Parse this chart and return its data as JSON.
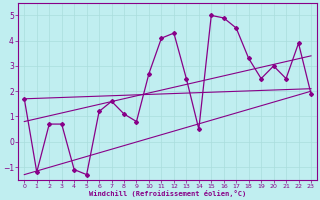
{
  "xlabel": "Windchill (Refroidissement éolien,°C)",
  "ylabel": "",
  "xlim": [
    -0.5,
    23.5
  ],
  "ylim": [
    -1.5,
    5.5
  ],
  "xticks": [
    0,
    1,
    2,
    3,
    4,
    5,
    6,
    7,
    8,
    9,
    10,
    11,
    12,
    13,
    14,
    15,
    16,
    17,
    18,
    19,
    20,
    21,
    22,
    23
  ],
  "yticks": [
    -1,
    0,
    1,
    2,
    3,
    4,
    5
  ],
  "bg_color": "#c0eef0",
  "line_color": "#880088",
  "grid_color": "#aadddd",
  "data_x": [
    0,
    1,
    2,
    3,
    4,
    5,
    6,
    7,
    8,
    9,
    10,
    11,
    12,
    13,
    14,
    15,
    16,
    17,
    18,
    19,
    20,
    21,
    22,
    23
  ],
  "data_y": [
    1.7,
    -1.2,
    0.7,
    0.7,
    -1.1,
    -1.3,
    1.2,
    1.6,
    1.1,
    0.8,
    2.7,
    4.1,
    4.3,
    2.5,
    0.5,
    5.0,
    4.9,
    4.5,
    3.3,
    2.5,
    3.0,
    2.5,
    3.9,
    1.9
  ],
  "line1_x": [
    0,
    23
  ],
  "line1_y": [
    -1.3,
    2.0
  ],
  "line2_x": [
    0,
    23
  ],
  "line2_y": [
    0.8,
    3.4
  ],
  "line3_x": [
    0,
    23
  ],
  "line3_y": [
    1.7,
    2.1
  ]
}
